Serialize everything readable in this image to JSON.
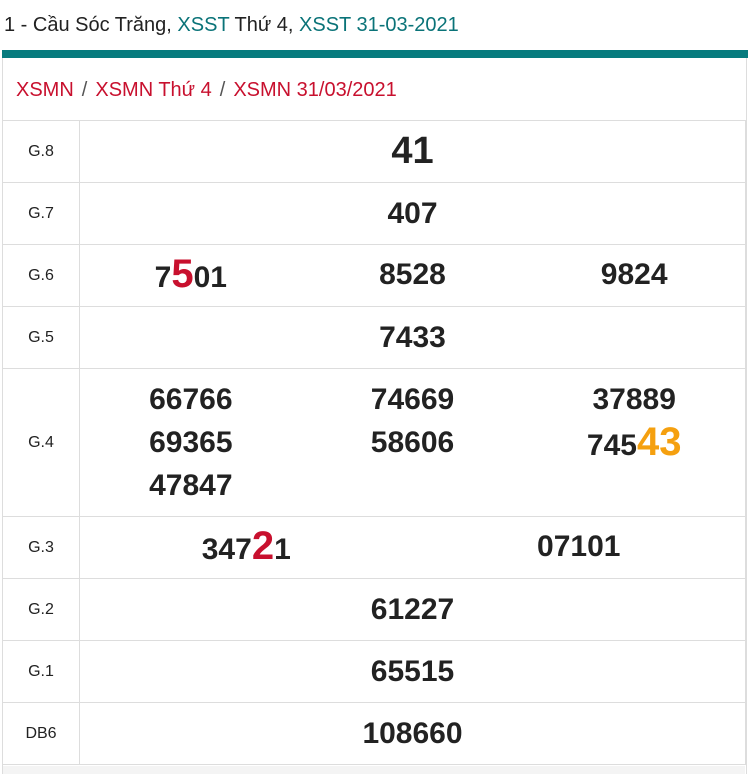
{
  "header": {
    "prefix": "1 - Cầu Sóc Trăng, ",
    "link1": "XSST",
    "mid": " Thứ 4, ",
    "link2": "XSST 31-03-2021"
  },
  "breadcrumb": [
    "XSMN",
    "XSMN Thứ 4",
    "XSMN 31/03/2021"
  ],
  "breadcrumb_sep": "/",
  "results": {
    "g8": {
      "label": "G.8",
      "value": "41"
    },
    "g7": {
      "label": "G.7",
      "value": "407"
    },
    "g6": {
      "label": "G.6",
      "values": [
        {
          "pre": "7",
          "hl": "5",
          "post": "01"
        },
        "8528",
        "9824"
      ]
    },
    "g5": {
      "label": "G.5",
      "value": "7433"
    },
    "g4": {
      "label": "G.4",
      "columns": [
        [
          "66766",
          "69365",
          "47847"
        ],
        [
          "74669",
          "58606"
        ],
        [
          "37889",
          {
            "pre": "745",
            "hl": "43"
          }
        ]
      ]
    },
    "g3": {
      "label": "G.3",
      "values": [
        {
          "pre": "347",
          "hl": "2",
          "post": "1"
        },
        "07101"
      ]
    },
    "g2": {
      "label": "G.2",
      "value": "61227"
    },
    "g1": {
      "label": "G.1",
      "value": "65515"
    },
    "db": {
      "label": "DB6",
      "value": "108660"
    }
  },
  "colors": {
    "teal": "#077b7e",
    "red": "#c8102e",
    "orange": "#f5a00f"
  }
}
